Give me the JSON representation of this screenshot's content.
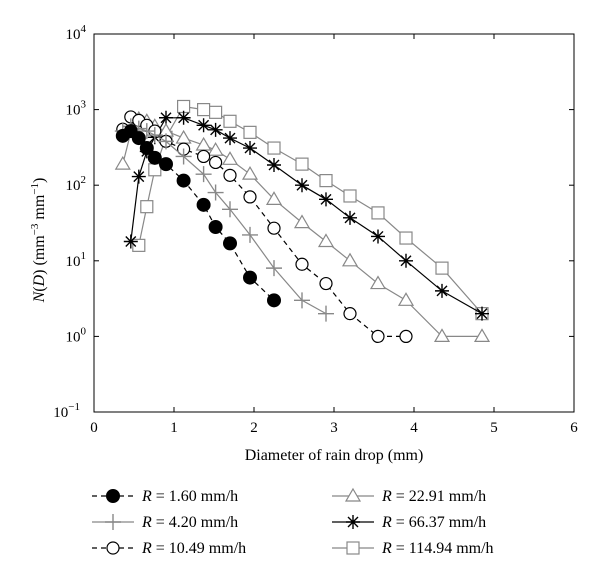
{
  "chart_data": {
    "type": "line",
    "xlabel": "Diameter of rain drop (mm)",
    "ylabel": "N(D) (mm⁻³ mm⁻¹)",
    "ylabel_parts": {
      "name": "N",
      "arg": "D",
      "unit_base": "mm",
      "unit_exp1": "−3",
      "unit_mid": " mm",
      "unit_exp2": "−1"
    },
    "xlim": [
      0,
      6
    ],
    "ylim": [
      0.1,
      10000
    ],
    "yscale": "log",
    "grid": false,
    "legend_position": "bottom",
    "x_ticks": [
      {
        "value": 0,
        "label": "0"
      },
      {
        "value": 1,
        "label": "1"
      },
      {
        "value": 2,
        "label": "2"
      },
      {
        "value": 3,
        "label": "3"
      },
      {
        "value": 4,
        "label": "4"
      },
      {
        "value": 5,
        "label": "5"
      },
      {
        "value": 6,
        "label": "6"
      }
    ],
    "y_ticks": [
      {
        "value": 0.1,
        "base": "10",
        "exp": "−1"
      },
      {
        "value": 1,
        "base": "10",
        "exp": "0"
      },
      {
        "value": 10,
        "base": "10",
        "exp": "1"
      },
      {
        "value": 100,
        "base": "10",
        "exp": "2"
      },
      {
        "value": 1000,
        "base": "10",
        "exp": "3"
      },
      {
        "value": 10000,
        "base": "10",
        "exp": "4"
      }
    ],
    "series": [
      {
        "name": "R = 1.60 mm/h",
        "var": "R",
        "rest": " = 1.60 mm/h",
        "marker": "filled-circle",
        "dash": "dashed",
        "color": "#000000",
        "x": [
          0.36,
          0.46,
          0.56,
          0.66,
          0.76,
          0.9,
          1.12,
          1.37,
          1.52,
          1.7,
          1.95,
          2.25
        ],
        "y": [
          450,
          520,
          420,
          310,
          230,
          190,
          115,
          55,
          28,
          17,
          6,
          3
        ]
      },
      {
        "name": "R = 4.20 mm/h",
        "var": "R",
        "rest": " = 4.20 mm/h",
        "marker": "plus",
        "dash": "solid",
        "color": "#888888",
        "x": [
          0.36,
          0.46,
          0.56,
          0.66,
          0.76,
          0.9,
          1.12,
          1.37,
          1.52,
          1.7,
          1.95,
          2.25,
          2.6,
          2.9
        ],
        "y": [
          520,
          600,
          560,
          520,
          460,
          380,
          240,
          140,
          80,
          48,
          22,
          8,
          3,
          2
        ]
      },
      {
        "name": "R = 10.49 mm/h",
        "var": "R",
        "rest": " = 10.49 mm/h",
        "marker": "open-circle",
        "dash": "dashed",
        "color": "#000000",
        "x": [
          0.36,
          0.46,
          0.56,
          0.66,
          0.76,
          0.9,
          1.12,
          1.37,
          1.52,
          1.7,
          1.95,
          2.25,
          2.6,
          2.9,
          3.2,
          3.55,
          3.9
        ],
        "y": [
          550,
          800,
          720,
          620,
          520,
          380,
          300,
          240,
          200,
          135,
          70,
          27,
          9,
          5,
          2,
          1,
          1
        ]
      },
      {
        "name": "R = 22.91 mm/h",
        "var": "R",
        "rest": " = 22.91 mm/h",
        "marker": "triangle",
        "dash": "solid",
        "color": "#888888",
        "x": [
          0.36,
          0.46,
          0.56,
          0.66,
          0.76,
          0.9,
          1.12,
          1.37,
          1.52,
          1.7,
          1.95,
          2.25,
          2.6,
          2.9,
          3.2,
          3.55,
          3.9,
          4.35,
          4.85
        ],
        "y": [
          190,
          500,
          750,
          700,
          600,
          520,
          420,
          340,
          290,
          220,
          140,
          65,
          32,
          18,
          10,
          5,
          3,
          1,
          1
        ]
      },
      {
        "name": "R = 66.37 mm/h",
        "var": "R",
        "rest": " = 66.37 mm/h",
        "marker": "star",
        "dash": "solid",
        "color": "#000000",
        "x": [
          0.46,
          0.56,
          0.66,
          0.76,
          0.9,
          1.12,
          1.37,
          1.52,
          1.7,
          1.95,
          2.25,
          2.6,
          2.9,
          3.2,
          3.55,
          3.9,
          4.35,
          4.85
        ],
        "y": [
          18,
          130,
          280,
          430,
          780,
          780,
          620,
          540,
          420,
          310,
          185,
          100,
          65,
          37,
          21,
          10,
          4,
          2
        ]
      },
      {
        "name": "R = 114.94 mm/h",
        "var": "R",
        "rest": " = 114.94 mm/h",
        "marker": "square",
        "dash": "solid",
        "color": "#888888",
        "x": [
          0.56,
          0.66,
          0.76,
          0.9,
          1.12,
          1.37,
          1.52,
          1.7,
          1.95,
          2.25,
          2.6,
          2.9,
          3.2,
          3.55,
          3.9,
          4.35,
          4.85
        ],
        "y": [
          16,
          52,
          160,
          430,
          1100,
          1000,
          920,
          700,
          500,
          310,
          190,
          115,
          72,
          43,
          20,
          8,
          2
        ]
      }
    ]
  }
}
